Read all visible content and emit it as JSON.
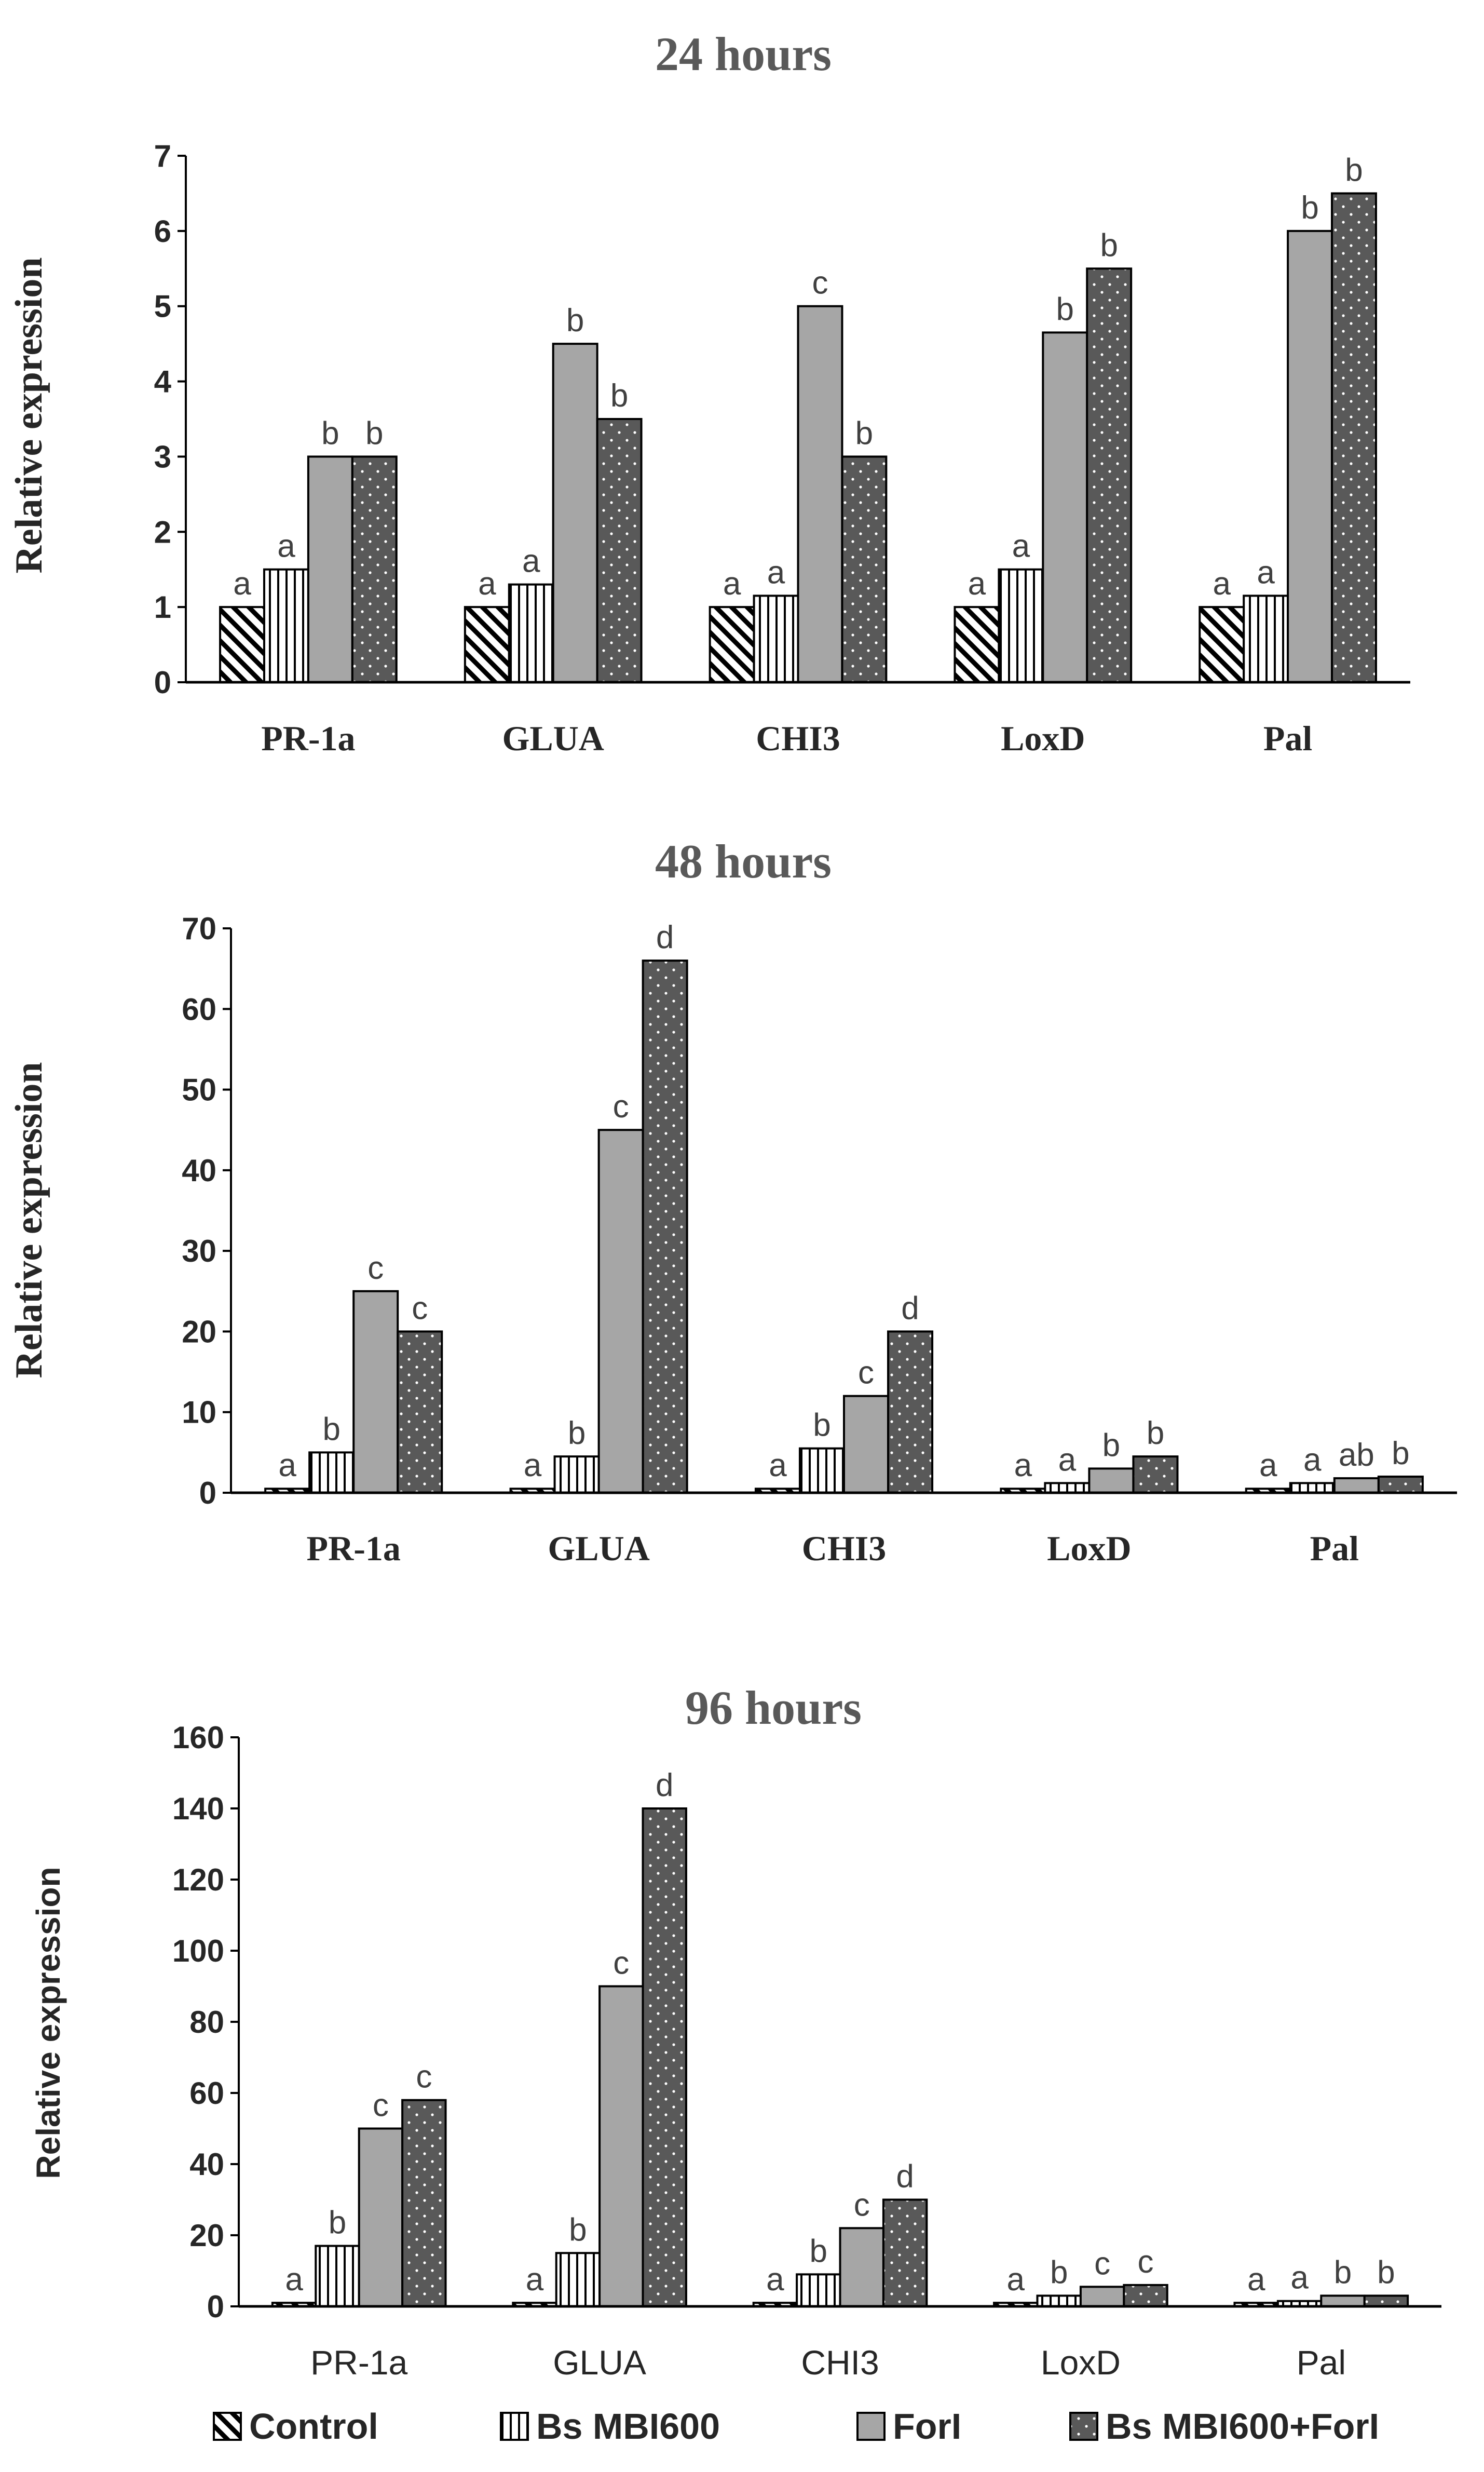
{
  "chart_data": [
    {
      "type": "bar",
      "title": "24 hours",
      "ylabel": "Relative expression",
      "xlabel": "",
      "ylim": [
        0,
        7
      ],
      "yticks": [
        "0",
        "1",
        "2",
        "3",
        "4",
        "5",
        "6",
        "7"
      ],
      "categories": [
        "PR-1a",
        "GLUA",
        "CHI3",
        "LoxD",
        "Pal"
      ],
      "series": [
        {
          "name": "Control",
          "values": [
            1,
            1,
            1,
            1,
            1
          ],
          "labels": [
            "a",
            "a",
            "a",
            "a",
            "a"
          ]
        },
        {
          "name": "Bs MBI600",
          "values": [
            1.5,
            1.3,
            1.15,
            1.5,
            1.15
          ],
          "labels": [
            "a",
            "a",
            "a",
            "a",
            "a"
          ]
        },
        {
          "name": "ForI",
          "values": [
            3,
            4.5,
            5,
            4.65,
            6
          ],
          "labels": [
            "b",
            "b",
            "c",
            "b",
            "b"
          ]
        },
        {
          "name": "Bs MBI600+ForI",
          "values": [
            3,
            3.5,
            3,
            5.5,
            6.5
          ],
          "labels": [
            "b",
            "b",
            "b",
            "b",
            "b"
          ]
        }
      ]
    },
    {
      "type": "bar",
      "title": "48 hours",
      "ylabel": "Relative expression",
      "xlabel": "",
      "ylim": [
        0,
        70
      ],
      "yticks": [
        "0",
        "10",
        "20",
        "30",
        "40",
        "50",
        "60",
        "70"
      ],
      "categories": [
        "PR-1a",
        "GLUA",
        "CHI3",
        "LoxD",
        "Pal"
      ],
      "series": [
        {
          "name": "Control",
          "values": [
            0.5,
            0.5,
            0.5,
            0.5,
            0.5
          ],
          "labels": [
            "a",
            "a",
            "a",
            "a",
            "a"
          ]
        },
        {
          "name": "Bs MBI600",
          "values": [
            5,
            4.5,
            5.5,
            1.2,
            1.2
          ],
          "labels": [
            "b",
            "b",
            "b",
            "a",
            "a"
          ]
        },
        {
          "name": "ForI",
          "values": [
            25,
            45,
            12,
            3,
            1.8
          ],
          "labels": [
            "c",
            "c",
            "c",
            "b",
            "ab"
          ]
        },
        {
          "name": "Bs MBI600+ForI",
          "values": [
            20,
            66,
            20,
            4.5,
            2
          ],
          "labels": [
            "c",
            "d",
            "d",
            "b",
            "b"
          ]
        }
      ]
    },
    {
      "type": "bar",
      "title": "96 hours",
      "ylabel": "Relative expression",
      "xlabel": "",
      "ylim": [
        0,
        160
      ],
      "yticks": [
        "0",
        "20",
        "40",
        "60",
        "80",
        "100",
        "120",
        "140",
        "160"
      ],
      "categories": [
        "PR-1a",
        "GLUA",
        "CHI3",
        "LoxD",
        "Pal"
      ],
      "series": [
        {
          "name": "Control",
          "values": [
            1,
            1,
            1,
            1,
            1
          ],
          "labels": [
            "a",
            "a",
            "a",
            "a",
            "a"
          ]
        },
        {
          "name": "Bs MBI600",
          "values": [
            17,
            15,
            9,
            3,
            1.5
          ],
          "labels": [
            "b",
            "b",
            "b",
            "b",
            "a"
          ]
        },
        {
          "name": "ForI",
          "values": [
            50,
            90,
            22,
            5.5,
            3
          ],
          "labels": [
            "c",
            "c",
            "c",
            "c",
            "b"
          ]
        },
        {
          "name": "Bs MBI600+ForI",
          "values": [
            58,
            140,
            30,
            6,
            3
          ],
          "labels": [
            "c",
            "d",
            "d",
            "c",
            "b"
          ]
        }
      ]
    }
  ],
  "legend": {
    "position": "bottom",
    "items": [
      "Control",
      "Bs MBI600",
      "ForI",
      "Bs MBI600+ForI"
    ]
  },
  "colors": {
    "ink": "#000000",
    "label_text": "#404040",
    "tick_text": "#262626",
    "title_text": "#595959",
    "fill_forl": "#a6a6a6",
    "fill_combo": "#595959",
    "dot": "#ffffff",
    "axis": "#000000"
  }
}
